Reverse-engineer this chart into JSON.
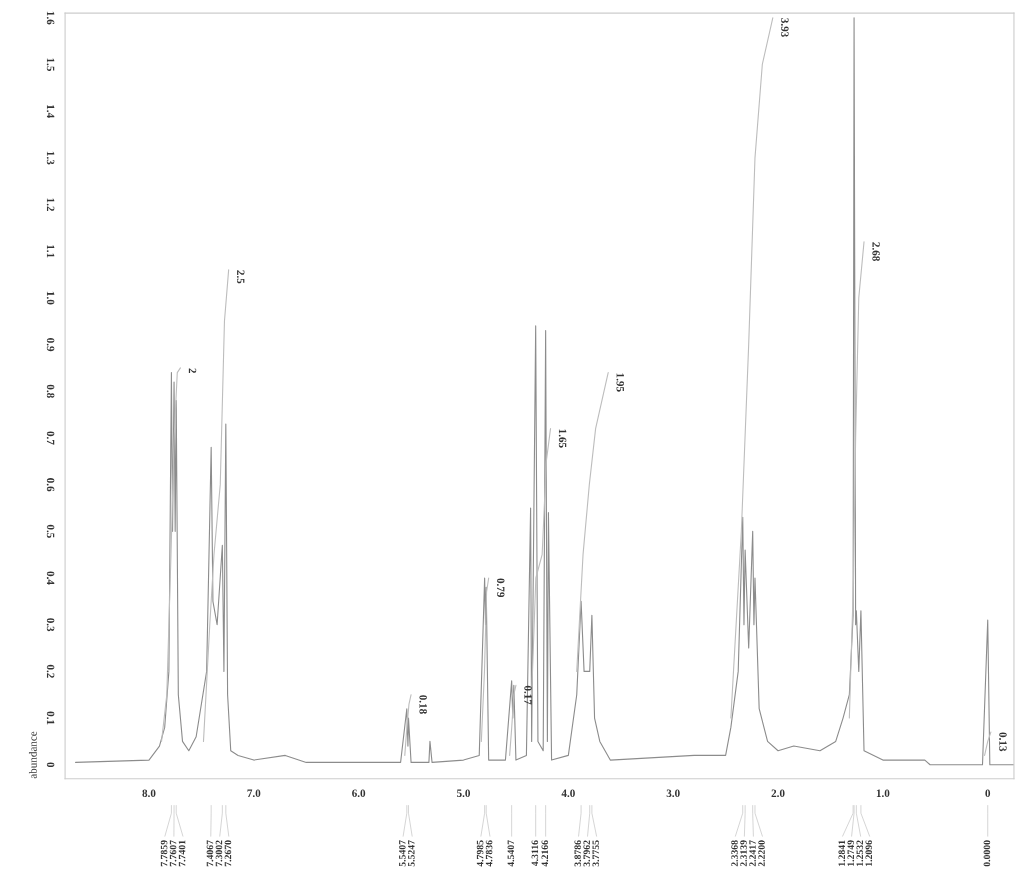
{
  "chart_data": {
    "type": "line",
    "ylabel": "abundance",
    "xlim": [
      8.8,
      -0.25
    ],
    "ylim": [
      -0.03,
      1.61
    ],
    "xticks": [
      {
        "value": 8.0,
        "label": "8.0"
      },
      {
        "value": 7.0,
        "label": "7.0"
      },
      {
        "value": 6.0,
        "label": "6.0"
      },
      {
        "value": 5.0,
        "label": "5.0"
      },
      {
        "value": 4.0,
        "label": "4.0"
      },
      {
        "value": 3.0,
        "label": "3.0"
      },
      {
        "value": 2.0,
        "label": "2.0"
      },
      {
        "value": 1.0,
        "label": "1.0"
      },
      0
    ],
    "yticks": [
      0,
      0.1,
      0.2,
      0.3,
      0.4,
      0.5,
      0.6,
      0.7,
      0.8,
      0.9,
      {
        "value": 1.0,
        "label": "1.0"
      },
      1.1,
      1.2,
      1.3,
      1.4,
      1.5,
      1.6
    ],
    "grid": false,
    "legend": false,
    "marker": "none",
    "line_style": "solid",
    "series": [
      {
        "color": "#8c8c8c",
        "x": [
          8.7,
          8.0,
          7.9,
          7.85,
          7.81,
          7.7859,
          7.775,
          7.7607,
          7.75,
          7.7401,
          7.72,
          7.68,
          7.62,
          7.55,
          7.45,
          7.4067,
          7.39,
          7.35,
          7.3002,
          7.285,
          7.267,
          7.25,
          7.22,
          7.15,
          7.0,
          6.7,
          6.5,
          5.6,
          5.5407,
          5.53,
          5.5247,
          5.5,
          5.33,
          5.32,
          5.3,
          5.0,
          4.85,
          4.7985,
          4.79,
          4.7836,
          4.76,
          4.6,
          4.5407,
          4.53,
          4.52,
          4.5,
          4.4,
          4.36,
          4.35,
          4.3116,
          4.29,
          4.24,
          4.2166,
          4.2,
          4.19,
          4.16,
          4.0,
          3.92,
          3.8786,
          3.85,
          3.7962,
          3.7755,
          3.75,
          3.7,
          3.6,
          2.8,
          2.5,
          2.45,
          2.38,
          2.3368,
          2.325,
          2.3139,
          2.28,
          2.2417,
          2.23,
          2.22,
          2.18,
          2.1,
          2.0,
          1.85,
          1.6,
          1.45,
          1.38,
          1.32,
          1.2841,
          1.2749,
          1.26,
          1.2532,
          1.23,
          1.2096,
          1.18,
          1.0,
          0.6,
          0.55,
          0.05,
          0.0,
          -0.02,
          -0.25
        ],
        "values": [
          0.005,
          0.01,
          0.04,
          0.08,
          0.2,
          0.84,
          0.5,
          0.82,
          0.5,
          0.78,
          0.15,
          0.05,
          0.03,
          0.06,
          0.2,
          0.68,
          0.35,
          0.3,
          0.47,
          0.2,
          0.73,
          0.15,
          0.03,
          0.02,
          0.01,
          0.02,
          0.005,
          0.005,
          0.12,
          0.04,
          0.1,
          0.005,
          0.005,
          0.05,
          0.005,
          0.01,
          0.02,
          0.4,
          0.3,
          0.38,
          0.01,
          0.01,
          0.18,
          0.1,
          0.17,
          0.01,
          0.02,
          0.55,
          0.05,
          0.94,
          0.05,
          0.03,
          0.93,
          0.05,
          0.54,
          0.01,
          0.02,
          0.15,
          0.35,
          0.2,
          0.2,
          0.32,
          0.1,
          0.05,
          0.01,
          0.02,
          0.02,
          0.08,
          0.2,
          0.53,
          0.3,
          0.46,
          0.25,
          0.5,
          0.3,
          0.4,
          0.12,
          0.05,
          0.03,
          0.04,
          0.03,
          0.05,
          0.1,
          0.15,
          0.32,
          1.6,
          0.3,
          0.33,
          0.2,
          0.33,
          0.03,
          0.01,
          0.01,
          0.0,
          0.0,
          0.31,
          0.0,
          0.0
        ]
      },
      {
        "color": "#bdbdbd",
        "x": [
          7.88,
          7.83,
          7.79,
          7.76,
          7.73,
          7.7
        ],
        "values": [
          0.05,
          0.15,
          0.45,
          0.7,
          0.84,
          0.85
        ]
      },
      {
        "color": "#bdbdbd",
        "x": [
          7.48,
          7.42,
          7.38,
          7.32,
          7.28,
          7.24
        ],
        "values": [
          0.05,
          0.3,
          0.45,
          0.6,
          0.95,
          1.06
        ]
      },
      {
        "color": "#bdbdbd",
        "x": [
          5.56,
          5.54,
          5.52,
          5.5
        ],
        "values": [
          0.02,
          0.08,
          0.13,
          0.15
        ]
      },
      {
        "color": "#bdbdbd",
        "x": [
          4.83,
          4.8,
          4.78,
          4.76
        ],
        "values": [
          0.05,
          0.2,
          0.37,
          0.4
        ]
      },
      {
        "color": "#bdbdbd",
        "x": [
          4.56,
          4.54,
          4.52,
          4.5
        ],
        "values": [
          0.02,
          0.08,
          0.15,
          0.17
        ]
      },
      {
        "color": "#bdbdbd",
        "x": [
          4.35,
          4.31,
          4.25,
          4.21,
          4.17
        ],
        "values": [
          0.15,
          0.4,
          0.45,
          0.65,
          0.72
        ]
      },
      {
        "color": "#bdbdbd",
        "x": [
          3.92,
          3.86,
          3.8,
          3.74,
          3.62
        ],
        "values": [
          0.2,
          0.45,
          0.6,
          0.72,
          0.84
        ]
      },
      {
        "color": "#bdbdbd",
        "x": [
          2.45,
          2.35,
          2.28,
          2.22,
          2.15,
          2.05
        ],
        "values": [
          0.1,
          0.5,
          0.9,
          1.3,
          1.5,
          1.6
        ]
      },
      {
        "color": "#bdbdbd",
        "x": [
          1.32,
          1.28,
          1.26,
          1.23,
          1.18
        ],
        "values": [
          0.1,
          0.4,
          0.7,
          1.0,
          1.12
        ]
      },
      {
        "color": "#bdbdbd",
        "x": [
          0.03,
          0.0,
          -0.03
        ],
        "values": [
          0.02,
          0.05,
          0.07
        ]
      }
    ],
    "annotations": [
      {
        "text": "2",
        "x": 7.7,
        "y": 0.85
      },
      {
        "text": "2.5",
        "x": 7.24,
        "y": 1.06
      },
      {
        "text": "0.18",
        "x": 5.5,
        "y": 0.15
      },
      {
        "text": "0.79",
        "x": 4.76,
        "y": 0.4
      },
      {
        "text": "0.17",
        "x": 4.5,
        "y": 0.17
      },
      {
        "text": "1.65",
        "x": 4.17,
        "y": 0.72
      },
      {
        "text": "1.95",
        "x": 3.62,
        "y": 0.84
      },
      {
        "text": "3.93",
        "x": 2.05,
        "y": 1.6
      },
      {
        "text": "2.68",
        "x": 1.18,
        "y": 1.12
      },
      {
        "text": "0.13",
        "x": -0.03,
        "y": 0.07
      },
      {
        "text": "7.7859",
        "x": 7.7859
      },
      {
        "text": "7.7607",
        "x": 7.7607
      },
      {
        "text": "7.7401",
        "x": 7.7401
      },
      {
        "text": "7.4067",
        "x": 7.4067
      },
      {
        "text": "7.3002",
        "x": 7.3002
      },
      {
        "text": "7.2670",
        "x": 7.267
      },
      {
        "text": "5.5407",
        "x": 5.5407
      },
      {
        "text": "5.5247",
        "x": 5.5247
      },
      {
        "text": "4.7985",
        "x": 4.7985
      },
      {
        "text": "4.7836",
        "x": 4.7836
      },
      {
        "text": "4.5407",
        "x": 4.5407
      },
      {
        "text": "4.3116",
        "x": 4.3116
      },
      {
        "text": "4.2166",
        "x": 4.2166
      },
      {
        "text": "3.8786",
        "x": 3.8786
      },
      {
        "text": "3.7962",
        "x": 3.7962
      },
      {
        "text": "3.7755",
        "x": 3.7755
      },
      {
        "text": "2.3368",
        "x": 2.3368
      },
      {
        "text": "2.3139",
        "x": 2.3139
      },
      {
        "text": "2.2417",
        "x": 2.2417
      },
      {
        "text": "2.2200",
        "x": 2.22
      },
      {
        "text": "1.2841",
        "x": 1.2841
      },
      {
        "text": "1.2749",
        "x": 1.2749
      },
      {
        "text": "1.2532",
        "x": 1.2532
      },
      {
        "text": "1.2096",
        "x": 1.2096
      },
      {
        "text": "0.0000",
        "x": 0.0
      }
    ]
  }
}
